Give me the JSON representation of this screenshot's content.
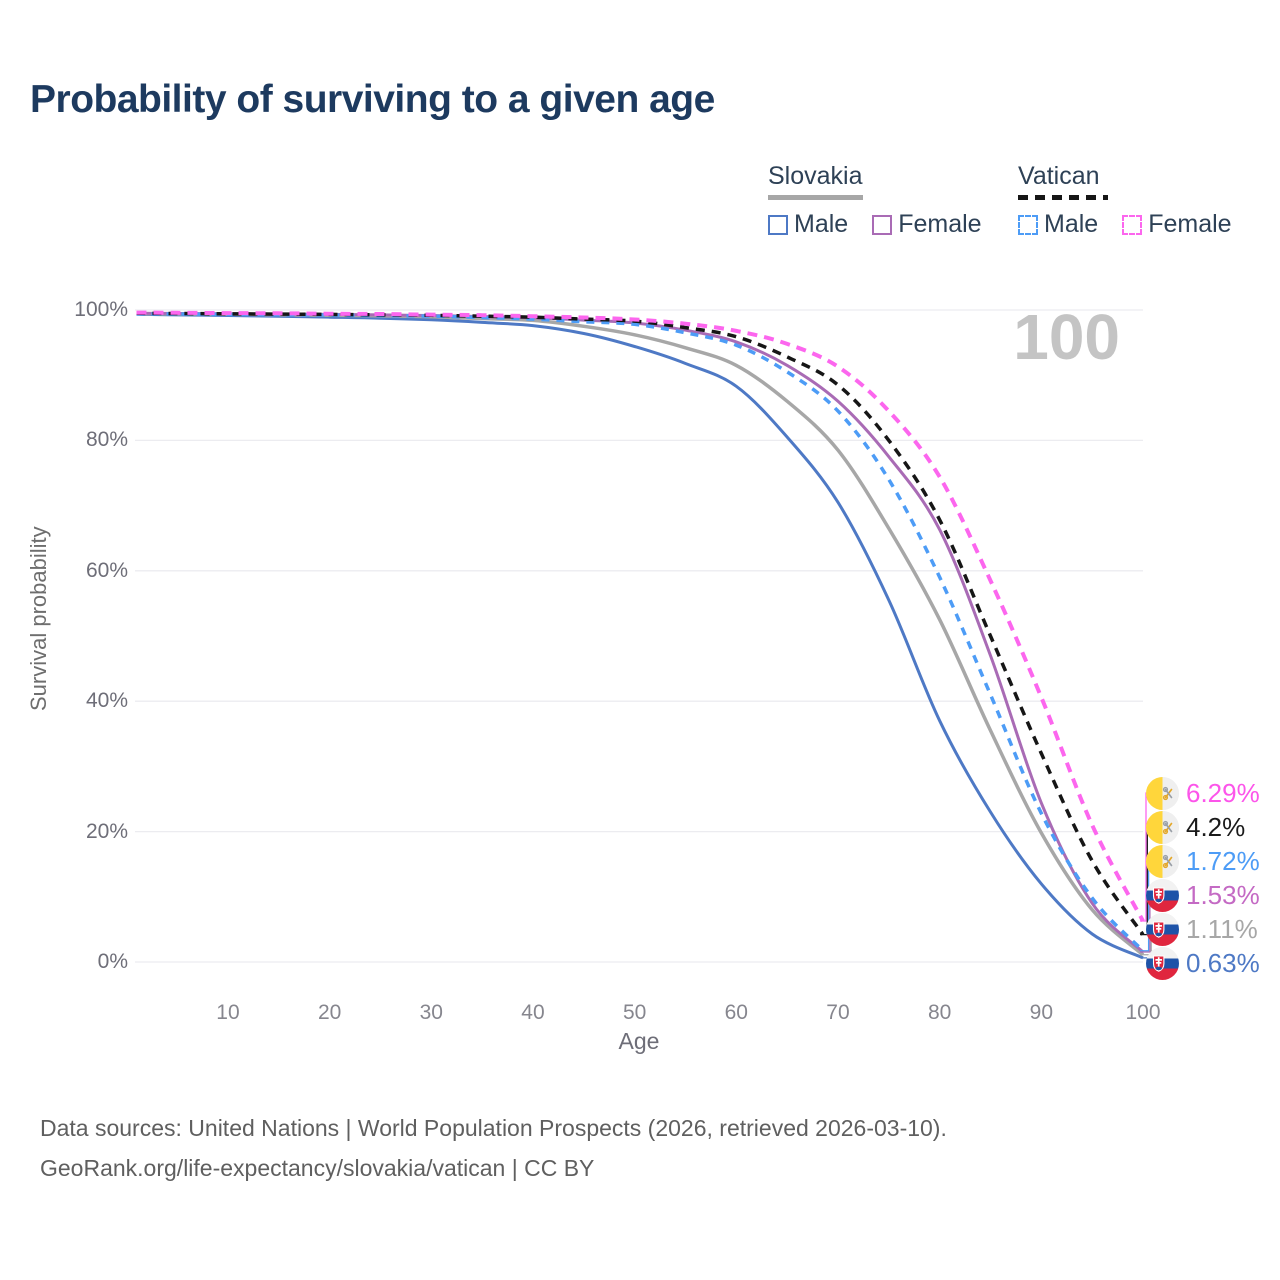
{
  "header": {
    "title": "Probability of surviving to a given age"
  },
  "legend": {
    "groups": [
      {
        "title": "Slovakia",
        "line_style": "solid",
        "line_color": "#a7a7a7",
        "items": [
          {
            "label": "Male",
            "color": "#4e79c5",
            "dashed": false
          },
          {
            "label": "Female",
            "color": "#a96bb5",
            "dashed": false
          }
        ]
      },
      {
        "title": "Vatican",
        "line_style": "dashed",
        "line_color": "#161616",
        "items": [
          {
            "label": "Male",
            "color": "#4d9cf6",
            "dashed": true
          },
          {
            "label": "Female",
            "color": "#fc66ee",
            "dashed": true
          }
        ]
      }
    ]
  },
  "chart_data": {
    "type": "line",
    "title": "Probability of surviving to a given age",
    "xlabel": "Age",
    "ylabel": "Survival probability",
    "xlim": [
      0,
      100
    ],
    "ylim": [
      0,
      100
    ],
    "grid": "horizontal",
    "legend_position": "top-right",
    "hover_age_annotation": "100",
    "x_ticks": [
      10,
      20,
      30,
      40,
      50,
      60,
      70,
      80,
      90,
      100
    ],
    "y_ticks": [
      {
        "value": 0,
        "label": "0%"
      },
      {
        "value": 20,
        "label": "20%"
      },
      {
        "value": 40,
        "label": "40%"
      },
      {
        "value": 60,
        "label": "60%"
      },
      {
        "value": 80,
        "label": "80%"
      },
      {
        "value": 100,
        "label": "100%"
      }
    ],
    "x": [
      1,
      5,
      10,
      15,
      20,
      25,
      30,
      35,
      40,
      45,
      50,
      55,
      60,
      65,
      70,
      75,
      80,
      85,
      90,
      95,
      100
    ],
    "series": [
      {
        "name": "Slovakia Male",
        "country": "Slovakia",
        "sex": "male",
        "flag": "slovakia",
        "color": "#4e79c5",
        "label_color": "#4e79c5",
        "dashed": false,
        "width": 3,
        "end_label": "0.63%",
        "values": [
          99.35,
          99.25,
          99.15,
          99.05,
          98.9,
          98.75,
          98.5,
          98.1,
          97.6,
          96.4,
          94.4,
          91.8,
          88.3,
          80.5,
          70.5,
          55.5,
          37.0,
          23.0,
          12.0,
          4.3,
          0.63
        ]
      },
      {
        "name": "Slovakia",
        "country": "Slovakia",
        "sex": "both",
        "flag": "slovakia",
        "color": "#a7a7a7",
        "label_color": "#a7a7a7",
        "dashed": false,
        "width": 3.5,
        "end_label": "1.11%",
        "values": [
          99.45,
          99.4,
          99.35,
          99.28,
          99.2,
          99.1,
          98.95,
          98.7,
          98.4,
          97.5,
          96.2,
          94.2,
          91.5,
          86.0,
          78.5,
          66.5,
          52.5,
          35.5,
          19.8,
          8.0,
          1.11
        ]
      },
      {
        "name": "Slovakia Female",
        "country": "Slovakia",
        "sex": "female",
        "flag": "slovakia",
        "color": "#a96bb5",
        "label_color": "#c46ac4",
        "dashed": false,
        "width": 3,
        "end_label": "1.53%",
        "values": [
          99.5,
          99.47,
          99.43,
          99.38,
          99.32,
          99.25,
          99.15,
          99.0,
          98.8,
          98.45,
          98.0,
          96.9,
          95.1,
          91.5,
          86.0,
          77.5,
          66.3,
          47.0,
          24.4,
          9.0,
          1.53
        ]
      },
      {
        "name": "Vatican Male",
        "country": "Vatican",
        "sex": "male",
        "flag": "vatican",
        "color": "#4d9cf6",
        "label_color": "#4d9cf6",
        "dashed": true,
        "width": 3.5,
        "dash": "8 7",
        "end_label": "1.72%",
        "values": [
          99.42,
          99.38,
          99.33,
          99.28,
          99.22,
          99.15,
          99.05,
          98.85,
          98.6,
          98.2,
          97.8,
          96.5,
          94.6,
          90.5,
          84.5,
          74.0,
          59.0,
          41.0,
          22.8,
          9.8,
          1.72
        ]
      },
      {
        "name": "Vatican",
        "country": "Vatican",
        "sex": "both",
        "flag": "vatican",
        "color": "#161616",
        "label_color": "#1a1a1a",
        "dashed": true,
        "width": 3.5,
        "dash": "9 7",
        "end_label": "4.2%",
        "values": [
          99.5,
          99.46,
          99.42,
          99.37,
          99.32,
          99.26,
          99.18,
          99.05,
          98.9,
          98.6,
          98.3,
          97.3,
          95.9,
          92.8,
          88.5,
          80.0,
          67.8,
          50.0,
          32.0,
          15.5,
          4.2
        ]
      },
      {
        "name": "Vatican Female",
        "country": "Vatican",
        "sex": "female",
        "flag": "vatican",
        "color": "#fc66ee",
        "label_color": "#fc55ea",
        "dashed": true,
        "width": 4,
        "dash": "10 7",
        "end_label": "6.29%",
        "values": [
          99.6,
          99.57,
          99.53,
          99.49,
          99.44,
          99.38,
          99.3,
          99.2,
          99.05,
          98.85,
          98.55,
          97.9,
          96.8,
          94.8,
          91.3,
          84.5,
          74.4,
          58.5,
          40.6,
          21.0,
          6.29
        ]
      }
    ]
  },
  "flags": {
    "vatican": {
      "yellow": "#ffd63b",
      "white": "#efefef",
      "key_gold": "#e3a82b",
      "key_gray": "#9aa0a8"
    },
    "slovakia": {
      "white": "#f2f2f2",
      "blue": "#1e53a8",
      "red": "#e0263e"
    }
  },
  "colors": {
    "title": "#1d3a5f",
    "grid": "#ececf0",
    "axis_text": "#6e6e78",
    "hover_annotation": "#c4c4c4",
    "footer_text": "#5f5f5f"
  },
  "footer": {
    "line1": "Data sources: United Nations | World Population Prospects (2026, retrieved 2026-03-10).",
    "line2": "GeoRank.org/life-expectancy/slovakia/vatican | CC BY"
  }
}
